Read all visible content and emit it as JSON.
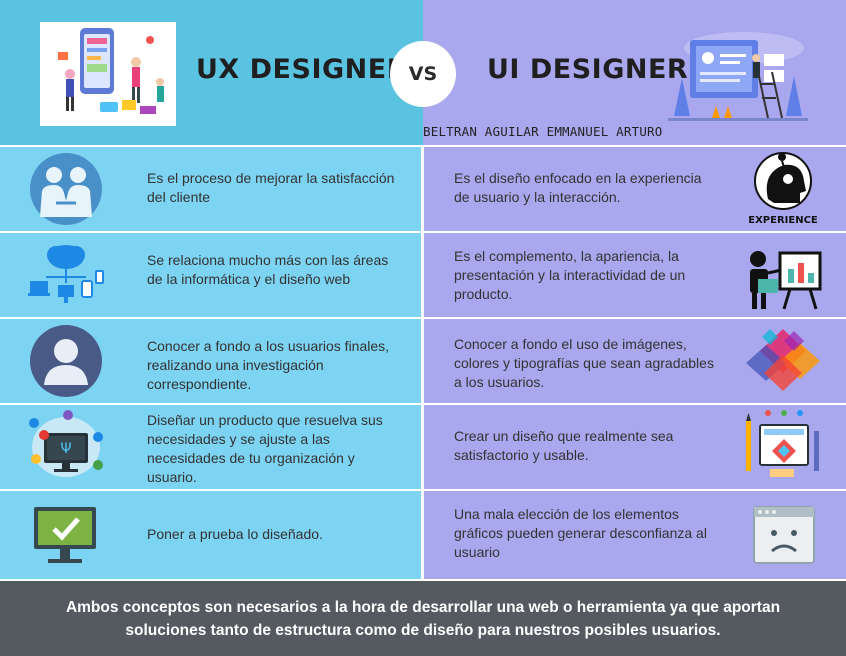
{
  "header": {
    "left_title": "UX DESIGNER",
    "vs": "VS",
    "right_title": "UI DESIGNER",
    "author": "BELTRAN AGUILAR EMMANUEL ARTURO",
    "left_color": "#5bc3e2",
    "right_color": "#a9a8ee"
  },
  "rows": [
    {
      "ux_text": "Es el proceso de mejorar la satisfacción del cliente",
      "ux_icon": "handshake-icon",
      "ui_text": "Es el diseño enfocado en la experiencia de usuario y la interacción.",
      "ui_icon": "experience-head-icon",
      "ui_icon_label": "EXPERIENCE"
    },
    {
      "ux_text": "Se relaciona mucho más con las áreas de la informática y el diseño web",
      "ux_icon": "cloud-network-icon",
      "ui_text": "Es el complemento, la apariencia, la presentación y la interactividad de un producto.",
      "ui_icon": "presentation-icon"
    },
    {
      "ux_text": "Conocer a fondo a los usuarios finales, realizando una investigación correspondiente.",
      "ux_icon": "user-avatar-icon",
      "ui_text": "Conocer a fondo el uso de imágenes, colores y tipografías que sean agradables a los usuarios.",
      "ui_icon": "color-palette-icon"
    },
    {
      "ux_text": "Diseñar un producto que resuelva sus necesidades y se ajuste a las necesidades de tu organización y usuario.",
      "ux_icon": "social-monitor-icon",
      "ui_text": "Crear un diseño que realmente sea satisfactorio y usable.",
      "ui_icon": "design-tools-icon"
    },
    {
      "ux_text": "Poner a prueba lo diseñado.",
      "ux_icon": "monitor-check-icon",
      "ui_text": "Una mala elección de los elementos gráficos pueden generar desconfianza al usuario",
      "ui_icon": "sad-window-icon"
    }
  ],
  "footer": {
    "text": "Ambos conceptos son necesarios a la hora de desarrollar una web o herramienta ya que aportan soluciones tanto de estructura como de diseño para nuestros posibles usuarios.",
    "color": "#555a60"
  }
}
